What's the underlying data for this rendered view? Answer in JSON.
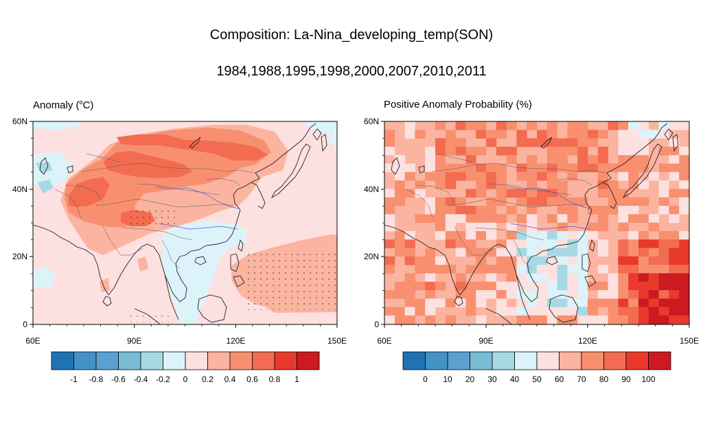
{
  "title": "Composition: La-Nina_developing_temp(SON)",
  "subtitle": "1984,1988,1995,1998,2000,2007,2010,2011",
  "panels": [
    {
      "title_prefix": "Anomaly (",
      "title_unit_sup": "o",
      "title_suffix": "C)",
      "lat_labels": [
        "60N",
        "40N",
        "20N",
        "0"
      ],
      "lon_labels": [
        "60E",
        "90E",
        "120E",
        "150E"
      ],
      "colorbar_labels": [
        "-1",
        "-0.8",
        "-0.6",
        "-0.4",
        "-0.2",
        "0",
        "0.2",
        "0.4",
        "0.6",
        "0.8",
        "1"
      ],
      "colorbar_colors": [
        "#2171b5",
        "#4292c6",
        "#5aa0d0",
        "#79bcd6",
        "#a6d9e3",
        "#dcf3fa",
        "#fde0e0",
        "#fbb4a0",
        "#f89070",
        "#f36b50",
        "#e9392d",
        "#cc1a20"
      ]
    },
    {
      "title": "Positive Anomaly Probability (%)",
      "lat_labels": [
        "60N",
        "40N",
        "20N",
        "0"
      ],
      "lon_labels": [
        "60E",
        "90E",
        "120E",
        "150E"
      ],
      "colorbar_labels": [
        "0",
        "10",
        "20",
        "30",
        "40",
        "50",
        "60",
        "70",
        "80",
        "90",
        "100"
      ],
      "colorbar_colors": [
        "#2171b5",
        "#4292c6",
        "#5aa0d0",
        "#79bcd6",
        "#a6d9e3",
        "#dcf3fa",
        "#fde0e0",
        "#fbb4a0",
        "#f89070",
        "#f36b50",
        "#e9392d",
        "#cc1a20"
      ]
    }
  ],
  "colors": {
    "background": "#ffffff",
    "map_base": "#fde0e0",
    "coast": "#222222",
    "border": "#555555",
    "river": "#5555cc",
    "stipple": "#333333"
  }
}
